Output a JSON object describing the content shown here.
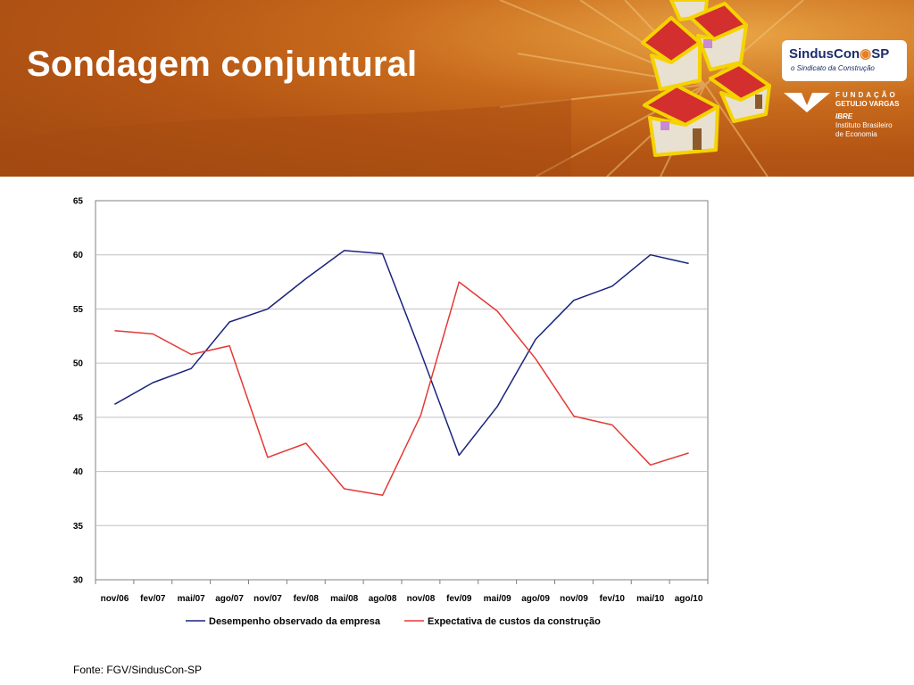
{
  "slide": {
    "title": "Sondagem conjuntural",
    "source": "Fonte: FGV/SindusCon-SP"
  },
  "logos": {
    "sinduscon_name": "SindusCon",
    "sinduscon_sp": "SP",
    "sinduscon_tagline": "o Sindicato da Construção",
    "fgv_line1": "FUNDAÇÃO",
    "fgv_line2": "GETULIO VARGAS",
    "ibre": "IBRE",
    "ibre_line1": "Instituto Brasileiro",
    "ibre_line2": "de Economia"
  },
  "colors": {
    "series_blue": "#1a237e",
    "series_red": "#e53935",
    "grid": "#c0c0c0",
    "house_roof": "#d32f2f",
    "house_outline": "#f5d300"
  },
  "chart_data": {
    "type": "line",
    "categories": [
      "nov/06",
      "fev/07",
      "mai/07",
      "ago/07",
      "nov/07",
      "fev/08",
      "mai/08",
      "ago/08",
      "nov/08",
      "fev/09",
      "mai/09",
      "ago/09",
      "nov/09",
      "fev/10",
      "mai/10",
      "ago/10"
    ],
    "ylim": [
      30,
      65
    ],
    "yticks": [
      30,
      35,
      40,
      45,
      50,
      55,
      60,
      65
    ],
    "grid": true,
    "legend_position": "bottom",
    "series": [
      {
        "name": "Desempenho observado da empresa",
        "color": "#1a237e",
        "values": [
          46.2,
          48.2,
          49.5,
          53.8,
          55.0,
          57.8,
          60.4,
          60.1,
          51.0,
          41.5,
          46.0,
          52.2,
          55.8,
          57.1,
          60.0,
          59.2
        ]
      },
      {
        "name": "Expectativa de custos da construção",
        "color": "#e53935",
        "values": [
          53.0,
          52.7,
          50.8,
          51.6,
          41.3,
          42.6,
          38.4,
          37.8,
          45.2,
          57.5,
          54.8,
          50.4,
          45.1,
          44.3,
          40.6,
          41.7
        ]
      }
    ]
  }
}
